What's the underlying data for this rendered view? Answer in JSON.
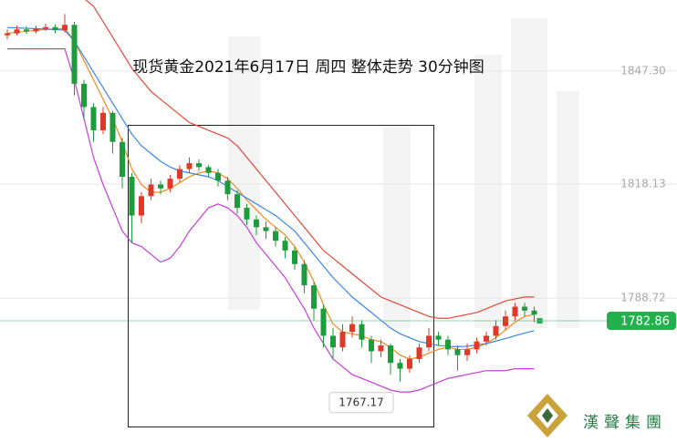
{
  "chart_data": {
    "type": "candlestick",
    "title": "现货黄金2021年6月17日 周四 整体走势  30分钟图",
    "open": [
      1856.5,
      1857,
      1858,
      1857.5,
      1858.2,
      1858.6,
      1857.8,
      1859.2,
      1844,
      1838,
      1832,
      1836.5,
      1829,
      1820,
      1810,
      1815,
      1818,
      1817,
      1819.5,
      1822,
      1823.5,
      1822.5,
      1821,
      1819,
      1815.5,
      1812,
      1809,
      1807,
      1806,
      1803.5,
      1801,
      1797.5,
      1792,
      1786,
      1779,
      1776,
      1780,
      1782,
      1778,
      1775,
      1776.5,
      1772,
      1770.5,
      1773,
      1776,
      1779,
      1778,
      1775.5,
      1774,
      1775.5,
      1777.5,
      1779,
      1781.5,
      1784,
      1786.5,
      1785.5
    ],
    "high": [
      1858,
      1859,
      1858.8,
      1859,
      1859.5,
      1859.3,
      1862,
      1860,
      1845,
      1839,
      1838,
      1837,
      1830,
      1821,
      1816,
      1819.5,
      1819,
      1820.5,
      1823,
      1825,
      1824.5,
      1823,
      1822,
      1820,
      1816.5,
      1813,
      1810,
      1808.5,
      1807,
      1804.5,
      1802,
      1798.5,
      1793,
      1787,
      1781,
      1782,
      1784,
      1783,
      1779,
      1778,
      1777,
      1773,
      1774,
      1777,
      1781,
      1780,
      1779,
      1776.5,
      1777,
      1778.5,
      1780,
      1783,
      1785.5,
      1787.5,
      1787.5,
      1786.5
    ],
    "low": [
      1855.5,
      1856.5,
      1856.8,
      1857,
      1857.6,
      1857,
      1857.2,
      1841,
      1835,
      1829,
      1831,
      1826,
      1817,
      1803,
      1808,
      1814,
      1815.5,
      1816,
      1818.5,
      1821,
      1821.5,
      1820,
      1817.5,
      1814,
      1810.5,
      1807.5,
      1805,
      1804,
      1802,
      1799,
      1796,
      1790,
      1783,
      1776,
      1773,
      1775,
      1778.5,
      1776,
      1772,
      1773.5,
      1769,
      1767.17,
      1769.5,
      1772,
      1775,
      1776.5,
      1774,
      1770,
      1772.5,
      1774.5,
      1776.5,
      1778,
      1780.5,
      1783,
      1784,
      1782.5
    ],
    "close": [
      1857,
      1858,
      1857.5,
      1858.2,
      1858.6,
      1857.8,
      1859.2,
      1844,
      1838,
      1832,
      1836.5,
      1829,
      1820,
      1810,
      1815,
      1818,
      1817,
      1819.5,
      1822,
      1823.5,
      1822.5,
      1821,
      1819,
      1815.5,
      1812,
      1809,
      1807,
      1806,
      1803.5,
      1801,
      1797.5,
      1792,
      1786,
      1779,
      1776,
      1780,
      1782,
      1778,
      1775,
      1776.5,
      1772,
      1770.5,
      1773,
      1776,
      1779,
      1778,
      1775.5,
      1774,
      1775.5,
      1777.5,
      1779,
      1781.5,
      1784,
      1786.5,
      1785.5,
      1784.5
    ],
    "up_color": "#e0392b",
    "down_color": "#1e9b3c",
    "series": [
      {
        "color": "#f08a1c",
        "values": [
          1857,
          1857.3,
          1857.5,
          1857.8,
          1858,
          1858,
          1858.3,
          1855,
          1850,
          1845,
          1840,
          1835,
          1829,
          1822,
          1818,
          1816,
          1816,
          1817,
          1818.5,
          1820,
          1821,
          1821.5,
          1821,
          1819.5,
          1817,
          1814,
          1811.5,
          1809,
          1807,
          1805,
          1802,
          1798,
          1793,
          1787,
          1782,
          1780,
          1779.5,
          1779,
          1778,
          1777.5,
          1776,
          1774,
          1773,
          1773.5,
          1774.5,
          1775.5,
          1776,
          1775.5,
          1775.5,
          1776,
          1777,
          1778.5,
          1780.5,
          1782.5,
          1784,
          1784.5
        ]
      },
      {
        "color": "#3a86e8",
        "values": [
          1858.5,
          1858.4,
          1858.3,
          1858.2,
          1858.1,
          1858,
          1857.8,
          1855,
          1851,
          1847,
          1843,
          1839,
          1835,
          1831,
          1828,
          1826,
          1824,
          1822.5,
          1821.5,
          1821,
          1820.5,
          1820,
          1819,
          1817.5,
          1816,
          1814.5,
          1813,
          1811.5,
          1810,
          1808,
          1806,
          1803,
          1800,
          1797,
          1794,
          1791.5,
          1789,
          1787,
          1785,
          1783,
          1781,
          1779.5,
          1778.5,
          1777.5,
          1777,
          1776.5,
          1776.3,
          1776.2,
          1776.3,
          1776.6,
          1777,
          1777.6,
          1778.3,
          1779,
          1779.7,
          1780.3
        ]
      },
      {
        "color": "#e04a3a",
        "values": [
          1866,
          1866,
          1866,
          1866,
          1866,
          1866,
          1866,
          1866,
          1866,
          1864,
          1860,
          1856,
          1852,
          1848,
          1845,
          1842,
          1840,
          1838,
          1836,
          1834,
          1833,
          1832,
          1831,
          1830,
          1828,
          1825,
          1822,
          1819,
          1816,
          1813,
          1810,
          1807,
          1804,
          1801,
          1799,
          1797,
          1795,
          1793,
          1791,
          1789,
          1788,
          1787,
          1786,
          1785,
          1784,
          1783.5,
          1783.5,
          1784,
          1784.5,
          1785,
          1786,
          1787,
          1788,
          1788.5,
          1789,
          1789
        ]
      },
      {
        "color": "#c43fd8",
        "values": [
          1853,
          1853,
          1853,
          1853,
          1853,
          1853,
          1853,
          1845,
          1835,
          1825,
          1818,
          1812,
          1806,
          1803,
          1802,
          1800,
          1798,
          1799,
          1802,
          1806,
          1809,
          1812,
          1813,
          1812,
          1810,
          1807,
          1803,
          1800,
          1797,
          1794,
          1790,
          1786,
          1781,
          1777,
          1773,
          1771,
          1769,
          1768,
          1767,
          1766,
          1765,
          1764.5,
          1764.5,
          1765,
          1766,
          1767,
          1768,
          1768.5,
          1769,
          1769.5,
          1770,
          1770,
          1770,
          1770.5,
          1770.5,
          1770.5
        ]
      }
    ],
    "ylim": [
      1751.6,
      1865.6
    ],
    "yticks": [
      {
        "value": 1847.3,
        "label": "1847.30"
      },
      1818.13,
      1788.72
    ],
    "grid": true,
    "current_price": 1782.86,
    "current_price_color": "#22b14c",
    "low_label": 1767.17,
    "logo_text": "漢聲集團"
  }
}
